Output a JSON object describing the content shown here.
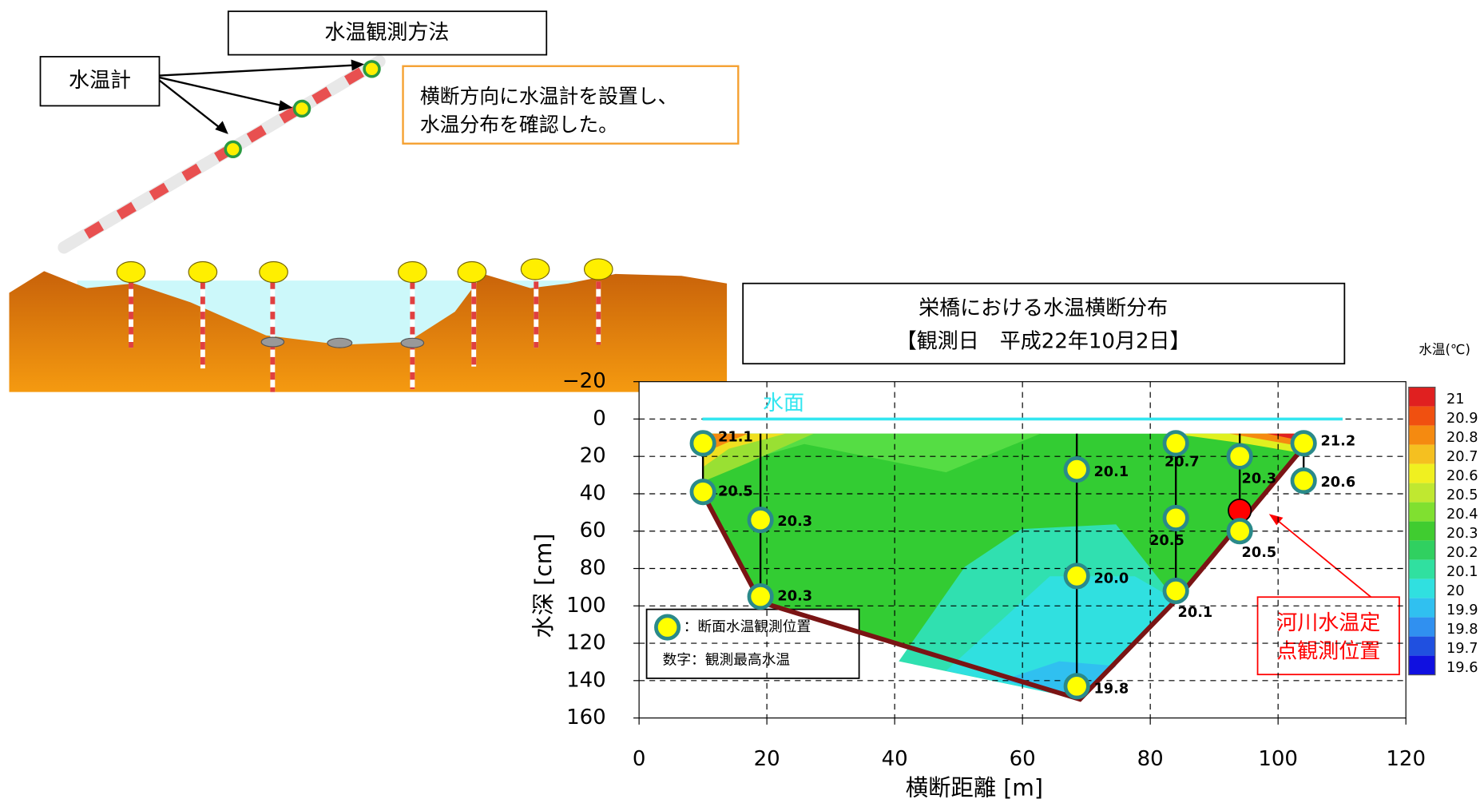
{
  "header": {
    "method_title": "水温観測方法",
    "thermometer_label": "水温計",
    "note": [
      "横断方向に水温計を設置し、",
      "水温分布を確認した。"
    ]
  },
  "chart_data": {
    "type": "scatter",
    "title": [
      "栄橋における水温横断分布",
      "【観測日　平成22年10月2日】"
    ],
    "x_label": "横断距離 [m]",
    "y_label": "水深 [cm]",
    "xlim": [
      0,
      120
    ],
    "xticks": [
      0,
      20,
      40,
      60,
      80,
      100,
      120
    ],
    "ylim": [
      160,
      -20
    ],
    "yticks": [
      {
        "value": -20,
        "label": "−20"
      },
      0,
      20,
      40,
      60,
      80,
      100,
      120,
      140,
      160
    ],
    "grid": true,
    "water_surface": {
      "label": "水面",
      "y": 0,
      "color": "#33e6f0"
    },
    "series": [
      {
        "name": "：断面水温観測位置",
        "color": "#ffff00",
        "x": [
          10,
          10,
          19,
          19,
          68.5,
          68.5,
          68.5,
          84,
          84,
          84,
          94,
          94,
          104,
          104
        ],
        "values": [
          13,
          39,
          54,
          95,
          27,
          84,
          143,
          13,
          53,
          92,
          20,
          60,
          13,
          33
        ],
        "value_labels": [
          "21.1",
          "20.5",
          "20.3",
          "20.3",
          "20.1",
          "20.0",
          "19.8",
          "20.7",
          "20.5",
          "20.1",
          "20.3",
          "20.5",
          "21.2",
          "20.6"
        ]
      }
    ],
    "legend_note": "数字：観測最高水温",
    "riverbed": {
      "color": "#7a1414",
      "x": [
        10,
        19,
        69,
        84,
        104
      ],
      "values": [
        40,
        98,
        150,
        97,
        15
      ]
    },
    "fixed_point": {
      "label": [
        "河川水温定",
        "点観測位置"
      ],
      "color": "#ff0000",
      "x": 94,
      "y": 49
    },
    "colorbar": {
      "title": "水温(℃)",
      "ticks": [
        21,
        20.9,
        20.8,
        20.7,
        20.6,
        20.5,
        20.4,
        20.3,
        20.2,
        20.1,
        20,
        19.9,
        19.8,
        19.7,
        19.6
      ],
      "colors": [
        "#e02020",
        "#f05010",
        "#f58a10",
        "#f5c020",
        "#f0f020",
        "#c0e830",
        "#80e030",
        "#40cc30",
        "#30d060",
        "#30e0a0",
        "#30e0e0",
        "#30c0f0",
        "#3090f0",
        "#2050e0",
        "#1010e0"
      ]
    }
  }
}
